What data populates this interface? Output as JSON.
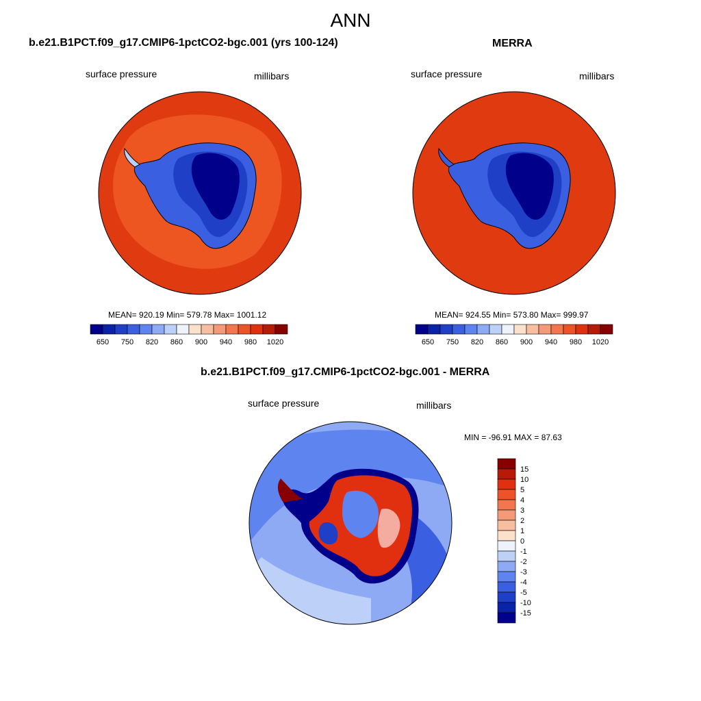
{
  "title": "ANN",
  "left_panel": {
    "title": "b.e21.B1PCT.f09_g17.CMIP6-1pctCO2-bgc.001 (yrs 100-124)",
    "variable": "surface pressure",
    "units": "millibars",
    "stats": "MEAN= 920.19  Min= 579.78  Max= 1001.12"
  },
  "right_panel": {
    "title": "MERRA",
    "variable": "surface pressure",
    "units": "millibars",
    "stats": "MEAN= 924.55  Min= 573.80  Max= 999.97"
  },
  "diff_panel": {
    "title": "b.e21.B1PCT.f09_g17.CMIP6-1pctCO2-bgc.001 - MERRA",
    "variable": "surface pressure",
    "units": "millibars",
    "stats": "MIN = -96.91 MAX =  87.63"
  },
  "colorbar_abs": {
    "colors": [
      "#00008b",
      "#0a22a8",
      "#1f3fc6",
      "#3a5fe0",
      "#5e84f0",
      "#8eaaf5",
      "#bdd0f8",
      "#eef3fb",
      "#fbe0cc",
      "#f8bea0",
      "#f59a78",
      "#f2764e",
      "#ee5228",
      "#e03010",
      "#b81a08",
      "#870000"
    ],
    "labels": [
      "650",
      "750",
      "820",
      "860",
      "900",
      "940",
      "980",
      "1020"
    ]
  },
  "colorbar_diff": {
    "colors": [
      "#870000",
      "#b81a08",
      "#e03010",
      "#ee5228",
      "#f2764e",
      "#f59a78",
      "#f8bea0",
      "#fbe0cc",
      "#eef3fb",
      "#bdd0f8",
      "#8eaaf5",
      "#5e84f0",
      "#3a5fe0",
      "#1f3fc6",
      "#0a22a8",
      "#00008b"
    ],
    "labels": [
      "15",
      "10",
      "5",
      "4",
      "3",
      "2",
      "1",
      "0",
      "-1",
      "-2",
      "-3",
      "-4",
      "-5",
      "-10",
      "-15"
    ]
  }
}
